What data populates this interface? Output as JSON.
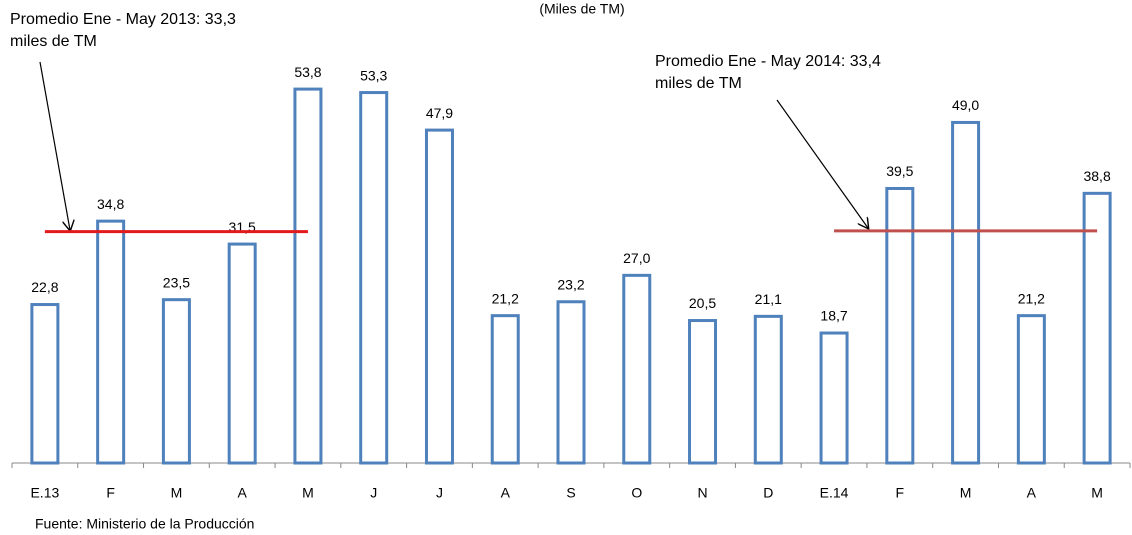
{
  "chart_data": {
    "type": "bar",
    "title": "(Miles de TM)",
    "categories": [
      "E.13",
      "F",
      "M",
      "A",
      "M",
      "J",
      "J",
      "A",
      "S",
      "O",
      "N",
      "D",
      "E.14",
      "F",
      "M",
      "A",
      "M"
    ],
    "values": [
      22.8,
      34.8,
      23.5,
      31.5,
      53.8,
      53.3,
      47.9,
      21.2,
      23.2,
      27.0,
      20.5,
      21.1,
      18.7,
      39.5,
      49.0,
      21.2,
      38.8
    ],
    "value_labels": [
      "22,8",
      "34,8",
      "23,5",
      "31,5",
      "53,8",
      "53,3",
      "47,9",
      "21,2",
      "23,2",
      "27,0",
      "20,5",
      "21,1",
      "18,7",
      "39,5",
      "49,0",
      "21,2",
      "38,8"
    ],
    "color": "#4f81bd",
    "averages": [
      {
        "label": [
          "Promedio Ene - May 2013: 33,3",
          "miles de TM"
        ],
        "value": 33.3,
        "color": "#e31a1c"
      },
      {
        "label": [
          "Promedio  Ene - May 2014: 33,4",
          "miles de TM"
        ],
        "value": 33.4,
        "color": "#c0504d"
      }
    ],
    "source": "Fuente: Ministerio de la Producción"
  }
}
